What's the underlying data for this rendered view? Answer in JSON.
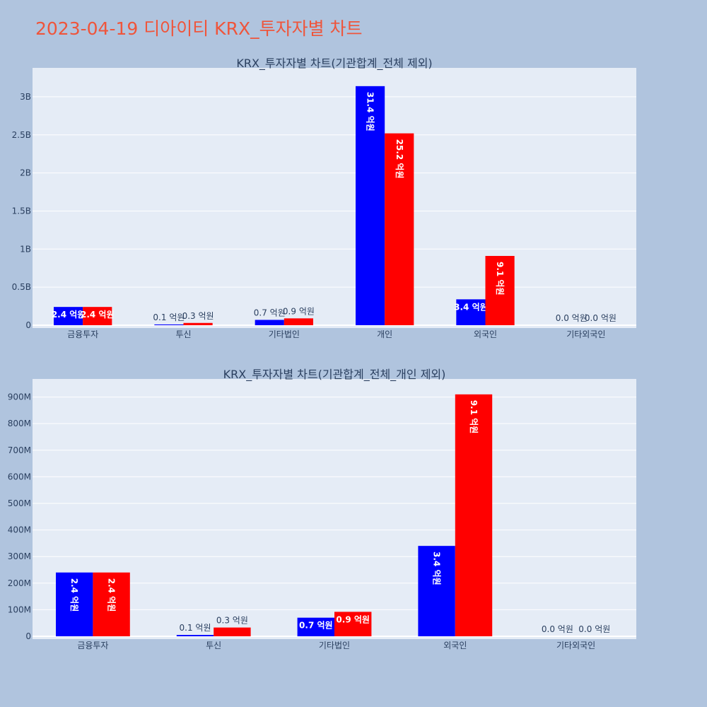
{
  "page": {
    "title": "2023-04-19 디아이티 KRX_투자자별 차트"
  },
  "colors": {
    "background": "#b0c4de",
    "plot_background": "#e5ecf6",
    "grid": "#ffffff",
    "title": "#ef553b",
    "text": "#2a3f5f",
    "series_a": "#0000ff",
    "series_b": "#ff0000"
  },
  "chart_data": [
    {
      "type": "bar",
      "title": "KRX_투자자별 차트(기관합계_전체 제외)",
      "categories": [
        "금융투자",
        "투신",
        "기타법인",
        "개인",
        "외국인",
        "기타외국인"
      ],
      "series": [
        {
          "color": "#0000ff",
          "values": [
            240000000,
            10000000,
            70000000,
            3140000000,
            340000000,
            0
          ],
          "labels": [
            "2.4 억원",
            "0.1 억원",
            "0.7 억원",
            "31.4 억원",
            "3.4 억원",
            "0.0 억원"
          ]
        },
        {
          "color": "#ff0000",
          "values": [
            240000000,
            30000000,
            90000000,
            2520000000,
            910000000,
            0
          ],
          "labels": [
            "2.4 억원",
            "0.3 억원",
            "0.9 억원",
            "25.2 억원",
            "9.1 억원",
            "0.0 억원"
          ]
        }
      ],
      "ylim": [
        0,
        3380000000
      ],
      "yticks": [
        0,
        500000000,
        1000000000,
        1500000000,
        2000000000,
        2500000000,
        3000000000
      ],
      "ytick_labels": [
        "0",
        "0.5B",
        "1B",
        "1.5B",
        "2B",
        "2.5B",
        "3B"
      ],
      "grid": true,
      "legend": "none"
    },
    {
      "type": "bar",
      "title": "KRX_투자자별 차트(기관합계_전체_개인 제외)",
      "categories": [
        "금융투자",
        "투신",
        "기타법인",
        "외국인",
        "기타외국인"
      ],
      "series": [
        {
          "color": "#0000ff",
          "values": [
            240000000,
            5000000,
            70000000,
            340000000,
            0
          ],
          "labels": [
            "2.4 억원",
            "0.1 억원",
            "0.7 억원",
            "3.4 억원",
            "0.0 억원"
          ]
        },
        {
          "color": "#ff0000",
          "values": [
            240000000,
            33000000,
            92000000,
            910000000,
            0
          ],
          "labels": [
            "2.4 억원",
            "0.3 억원",
            "0.9 억원",
            "9.1 억원",
            "0.0 억원"
          ]
        }
      ],
      "ylim": [
        0,
        968000000
      ],
      "yticks": [
        0,
        100000000,
        200000000,
        300000000,
        400000000,
        500000000,
        600000000,
        700000000,
        800000000,
        900000000
      ],
      "ytick_labels": [
        "0",
        "100M",
        "200M",
        "300M",
        "400M",
        "500M",
        "600M",
        "700M",
        "800M",
        "900M"
      ],
      "grid": true,
      "legend": "none"
    }
  ]
}
